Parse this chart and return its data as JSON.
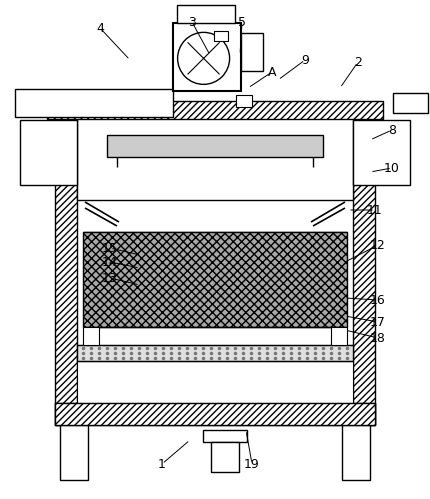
{
  "fig_width": 4.3,
  "fig_height": 4.99,
  "dpi": 100,
  "bg_color": "#ffffff",
  "line_color": "#000000"
}
